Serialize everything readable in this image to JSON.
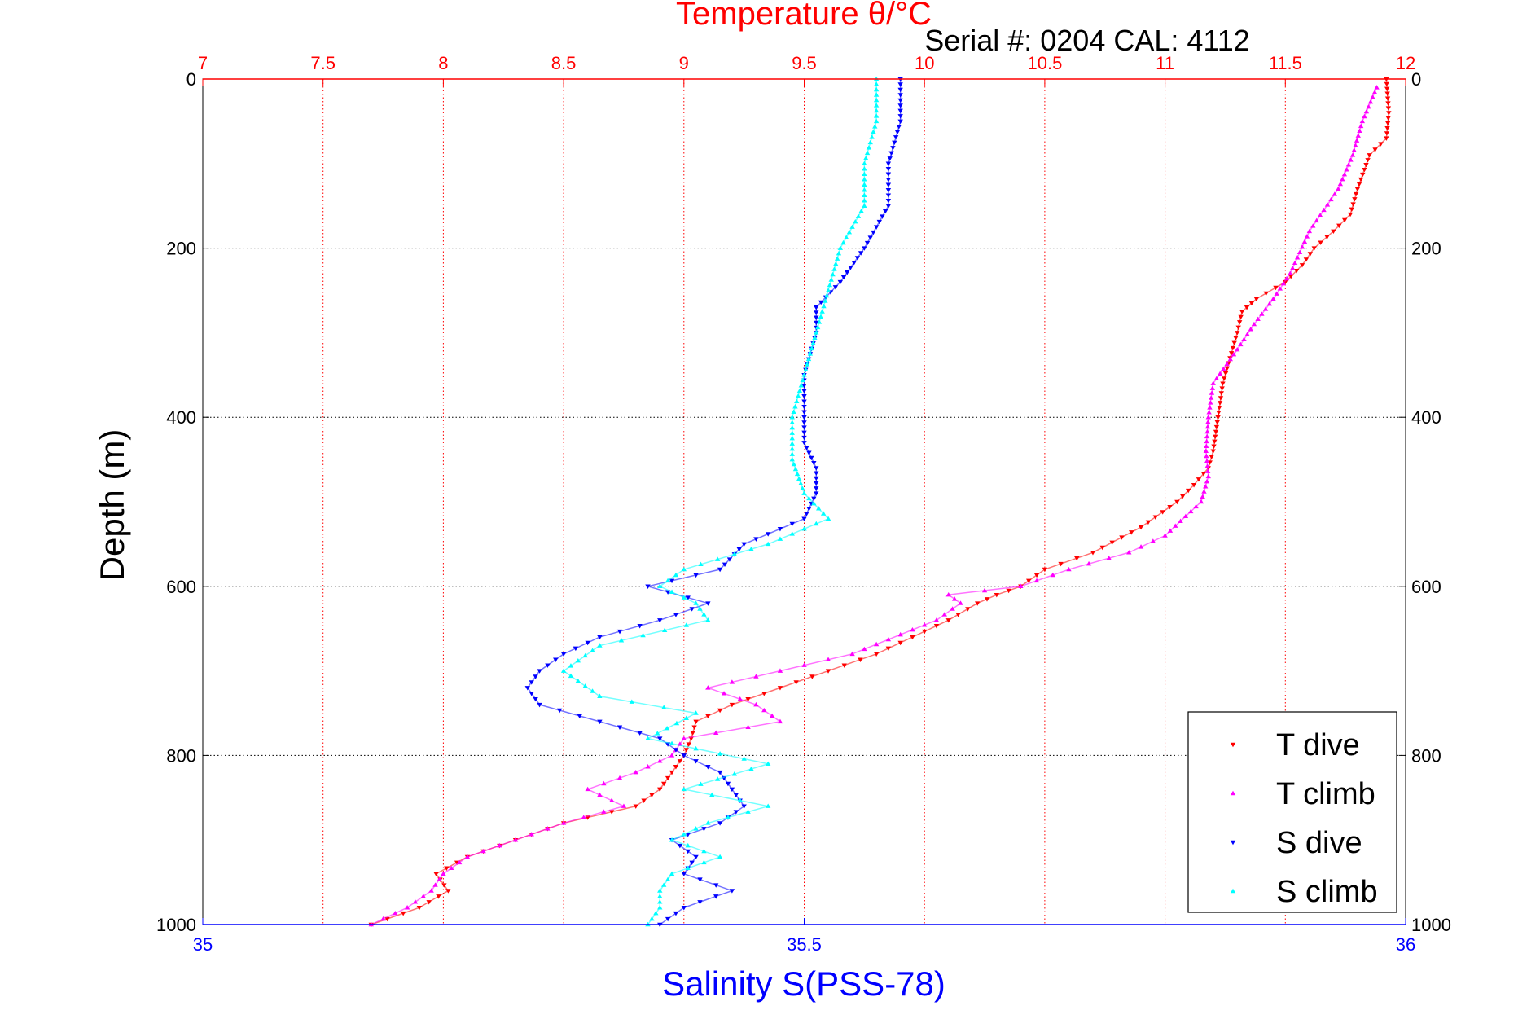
{
  "chart_data": {
    "type": "scatter",
    "title": "Temperature θ/°C",
    "subtitle": "Serial #: 0204  CAL: 4112",
    "xlabel_bottom": "Salinity S(PSS-78)",
    "ylabel": "Depth (m)",
    "xlim_top": [
      7,
      12
    ],
    "xlim_bottom": [
      35,
      36
    ],
    "ylim": [
      1000,
      0
    ],
    "x_ticks_top": [
      "7",
      "7.5",
      "8",
      "8.5",
      "9",
      "9.5",
      "10",
      "10.5",
      "11",
      "11.5",
      "12"
    ],
    "x_ticks_bottom": [
      "35",
      "35.5",
      "36"
    ],
    "y_ticks": [
      "0",
      "200",
      "400",
      "600",
      "800",
      "1000"
    ],
    "grid": true,
    "legend_position": "bottom-right",
    "colors": {
      "top_axis": "#ff0000",
      "bottom_axis": "#0000ff",
      "frame": "#000000"
    },
    "series": [
      {
        "name": "T dive",
        "axis": "top",
        "marker": "triangle-down",
        "color": "#ff0000",
        "points": [
          [
            11.92,
            0
          ],
          [
            11.93,
            40
          ],
          [
            11.92,
            70
          ],
          [
            11.85,
            90
          ],
          [
            11.8,
            130
          ],
          [
            11.77,
            160
          ],
          [
            11.7,
            180
          ],
          [
            11.62,
            200
          ],
          [
            11.57,
            220
          ],
          [
            11.5,
            240
          ],
          [
            11.38,
            260
          ],
          [
            11.32,
            275
          ],
          [
            11.3,
            300
          ],
          [
            11.27,
            330
          ],
          [
            11.24,
            360
          ],
          [
            11.22,
            400
          ],
          [
            11.2,
            440
          ],
          [
            11.18,
            460
          ],
          [
            11.12,
            480
          ],
          [
            11.05,
            500
          ],
          [
            10.9,
            530
          ],
          [
            10.7,
            560
          ],
          [
            10.5,
            580
          ],
          [
            10.4,
            600
          ],
          [
            10.3,
            610
          ],
          [
            10.22,
            620
          ],
          [
            10.1,
            640
          ],
          [
            9.95,
            660
          ],
          [
            9.8,
            680
          ],
          [
            9.6,
            700
          ],
          [
            9.4,
            720
          ],
          [
            9.2,
            740
          ],
          [
            9.05,
            760
          ],
          [
            9.03,
            780
          ],
          [
            9.0,
            800
          ],
          [
            8.95,
            820
          ],
          [
            8.9,
            840
          ],
          [
            8.8,
            860
          ],
          [
            8.5,
            880
          ],
          [
            8.3,
            900
          ],
          [
            8.1,
            920
          ],
          [
            7.97,
            940
          ],
          [
            8.02,
            960
          ],
          [
            7.9,
            980
          ],
          [
            7.7,
            1000
          ]
        ]
      },
      {
        "name": "T climb",
        "axis": "top",
        "marker": "triangle-up",
        "color": "#ff00ff",
        "points": [
          [
            11.88,
            10
          ],
          [
            11.82,
            50
          ],
          [
            11.78,
            90
          ],
          [
            11.72,
            130
          ],
          [
            11.6,
            180
          ],
          [
            11.52,
            230
          ],
          [
            11.45,
            260
          ],
          [
            11.37,
            290
          ],
          [
            11.3,
            320
          ],
          [
            11.2,
            360
          ],
          [
            11.18,
            400
          ],
          [
            11.17,
            440
          ],
          [
            11.18,
            470
          ],
          [
            11.15,
            500
          ],
          [
            11.0,
            540
          ],
          [
            10.85,
            560
          ],
          [
            10.6,
            580
          ],
          [
            10.4,
            600
          ],
          [
            10.1,
            610
          ],
          [
            10.15,
            620
          ],
          [
            10.05,
            640
          ],
          [
            9.7,
            680
          ],
          [
            9.4,
            700
          ],
          [
            9.1,
            720
          ],
          [
            9.3,
            740
          ],
          [
            9.4,
            760
          ],
          [
            9.0,
            780
          ],
          [
            8.95,
            800
          ],
          [
            8.8,
            820
          ],
          [
            8.6,
            840
          ],
          [
            8.75,
            860
          ],
          [
            8.5,
            880
          ],
          [
            8.3,
            900
          ],
          [
            8.1,
            920
          ],
          [
            8.0,
            940
          ],
          [
            7.95,
            960
          ],
          [
            7.85,
            980
          ],
          [
            7.7,
            1000
          ]
        ]
      },
      {
        "name": "S dive",
        "axis": "bottom",
        "marker": "triangle-down",
        "color": "#0000ff",
        "points": [
          [
            35.58,
            0
          ],
          [
            35.58,
            50
          ],
          [
            35.57,
            100
          ],
          [
            35.57,
            150
          ],
          [
            35.55,
            200
          ],
          [
            35.53,
            240
          ],
          [
            35.51,
            270
          ],
          [
            35.51,
            300
          ],
          [
            35.5,
            350
          ],
          [
            35.5,
            400
          ],
          [
            35.5,
            430
          ],
          [
            35.51,
            460
          ],
          [
            35.51,
            490
          ],
          [
            35.5,
            520
          ],
          [
            35.45,
            550
          ],
          [
            35.43,
            580
          ],
          [
            35.37,
            600
          ],
          [
            35.42,
            620
          ],
          [
            35.38,
            640
          ],
          [
            35.33,
            660
          ],
          [
            35.3,
            680
          ],
          [
            35.28,
            700
          ],
          [
            35.27,
            720
          ],
          [
            35.28,
            740
          ],
          [
            35.33,
            760
          ],
          [
            35.38,
            780
          ],
          [
            35.4,
            800
          ],
          [
            35.43,
            820
          ],
          [
            35.44,
            840
          ],
          [
            35.45,
            860
          ],
          [
            35.43,
            880
          ],
          [
            35.39,
            900
          ],
          [
            35.41,
            920
          ],
          [
            35.4,
            940
          ],
          [
            35.44,
            960
          ],
          [
            35.4,
            980
          ],
          [
            35.38,
            1000
          ]
        ]
      },
      {
        "name": "S climb",
        "axis": "bottom",
        "marker": "triangle-up",
        "color": "#00ffff",
        "points": [
          [
            35.56,
            0
          ],
          [
            35.56,
            50
          ],
          [
            35.55,
            100
          ],
          [
            35.55,
            150
          ],
          [
            35.53,
            200
          ],
          [
            35.52,
            250
          ],
          [
            35.51,
            300
          ],
          [
            35.5,
            350
          ],
          [
            35.49,
            400
          ],
          [
            35.49,
            450
          ],
          [
            35.5,
            490
          ],
          [
            35.52,
            520
          ],
          [
            35.47,
            550
          ],
          [
            35.4,
            580
          ],
          [
            35.38,
            600
          ],
          [
            35.41,
            620
          ],
          [
            35.42,
            640
          ],
          [
            35.33,
            670
          ],
          [
            35.3,
            700
          ],
          [
            35.33,
            730
          ],
          [
            35.41,
            750
          ],
          [
            35.37,
            780
          ],
          [
            35.47,
            810
          ],
          [
            35.4,
            840
          ],
          [
            35.47,
            860
          ],
          [
            35.42,
            880
          ],
          [
            35.39,
            900
          ],
          [
            35.43,
            920
          ],
          [
            35.39,
            940
          ],
          [
            35.38,
            960
          ],
          [
            35.38,
            980
          ],
          [
            35.37,
            1000
          ]
        ]
      }
    ]
  }
}
